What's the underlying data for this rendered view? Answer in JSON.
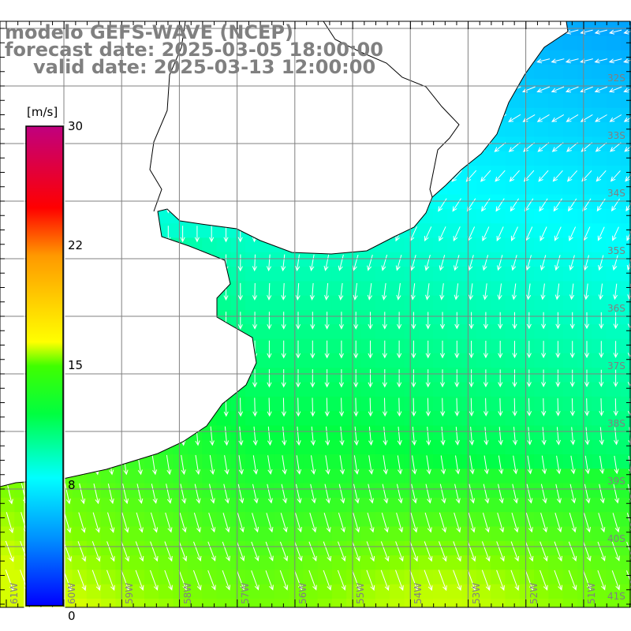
{
  "titles": {
    "line1": "modelo GEFS-WAVE (NCEP)",
    "line2": "forecast date: 2025-03-05 18:00:00",
    "line3": "valid date: 2025-03-13 12:00:00"
  },
  "colorbar": {
    "unit": "[m/s]",
    "ticks": [
      "30",
      "22",
      "15",
      "8",
      "0"
    ],
    "tick_values": [
      30,
      22,
      15,
      8,
      0
    ],
    "colors": [
      "#0000ff",
      "#00a0ff",
      "#00ffff",
      "#00ff40",
      "#80ff00",
      "#ffff00",
      "#ff9900",
      "#ff0000",
      "#c0007f"
    ]
  },
  "latitude_labels": [
    "32S",
    "33S",
    "34S",
    "35S",
    "36S",
    "37S",
    "38S",
    "39S",
    "40S",
    "41S"
  ],
  "longitude_labels": [
    "61W",
    "60W",
    "59W",
    "58W",
    "57W",
    "56W",
    "55W",
    "54W",
    "53W",
    "52W",
    "51W"
  ],
  "colors": {
    "grid": "#808080",
    "land": "#ffffff",
    "coast": "#000000",
    "arrow": "#ffffff",
    "title": "#808080"
  }
}
